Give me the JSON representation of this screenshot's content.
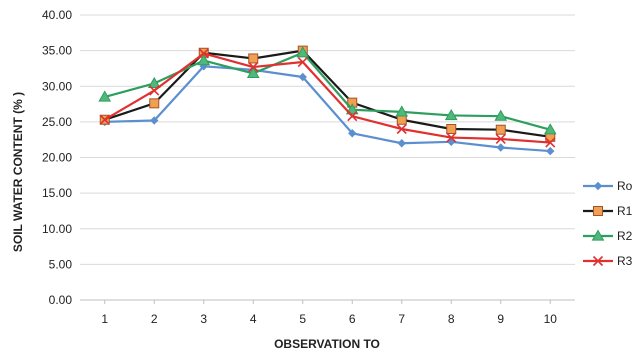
{
  "chart_data": {
    "type": "line",
    "xlabel": "OBSERVATION TO",
    "ylabel": "SOIL WATER CONTENT (% )",
    "x": [
      1,
      2,
      3,
      4,
      5,
      6,
      7,
      8,
      9,
      10
    ],
    "ylim": [
      0,
      40
    ],
    "y_tick_labels": [
      "0.00",
      "5.00",
      "10.00",
      "15.00",
      "20.00",
      "25.00",
      "30.00",
      "35.00",
      "40.00"
    ],
    "grid": true,
    "legend_position": "right",
    "series": [
      {
        "name": "Ro",
        "color": "#5b8fd0",
        "marker": "diamond",
        "values": [
          25.0,
          25.2,
          32.8,
          32.3,
          31.3,
          23.4,
          22.0,
          22.2,
          21.4,
          20.9
        ]
      },
      {
        "name": "R1",
        "color": "#1a1a1a",
        "marker": "square",
        "marker_fill": "#f0a050",
        "values": [
          25.3,
          27.6,
          34.7,
          33.9,
          35.0,
          27.7,
          25.3,
          24.0,
          23.9,
          22.9
        ]
      },
      {
        "name": "R2",
        "color": "#2e9e5e",
        "marker": "triangle",
        "values": [
          28.5,
          30.4,
          33.6,
          31.8,
          34.7,
          26.7,
          26.4,
          25.9,
          25.8,
          23.9
        ]
      },
      {
        "name": "R3",
        "color": "#e03030",
        "marker": "x",
        "values": [
          25.3,
          29.4,
          34.6,
          32.7,
          33.4,
          25.8,
          24.0,
          22.8,
          22.6,
          22.1
        ]
      }
    ]
  }
}
